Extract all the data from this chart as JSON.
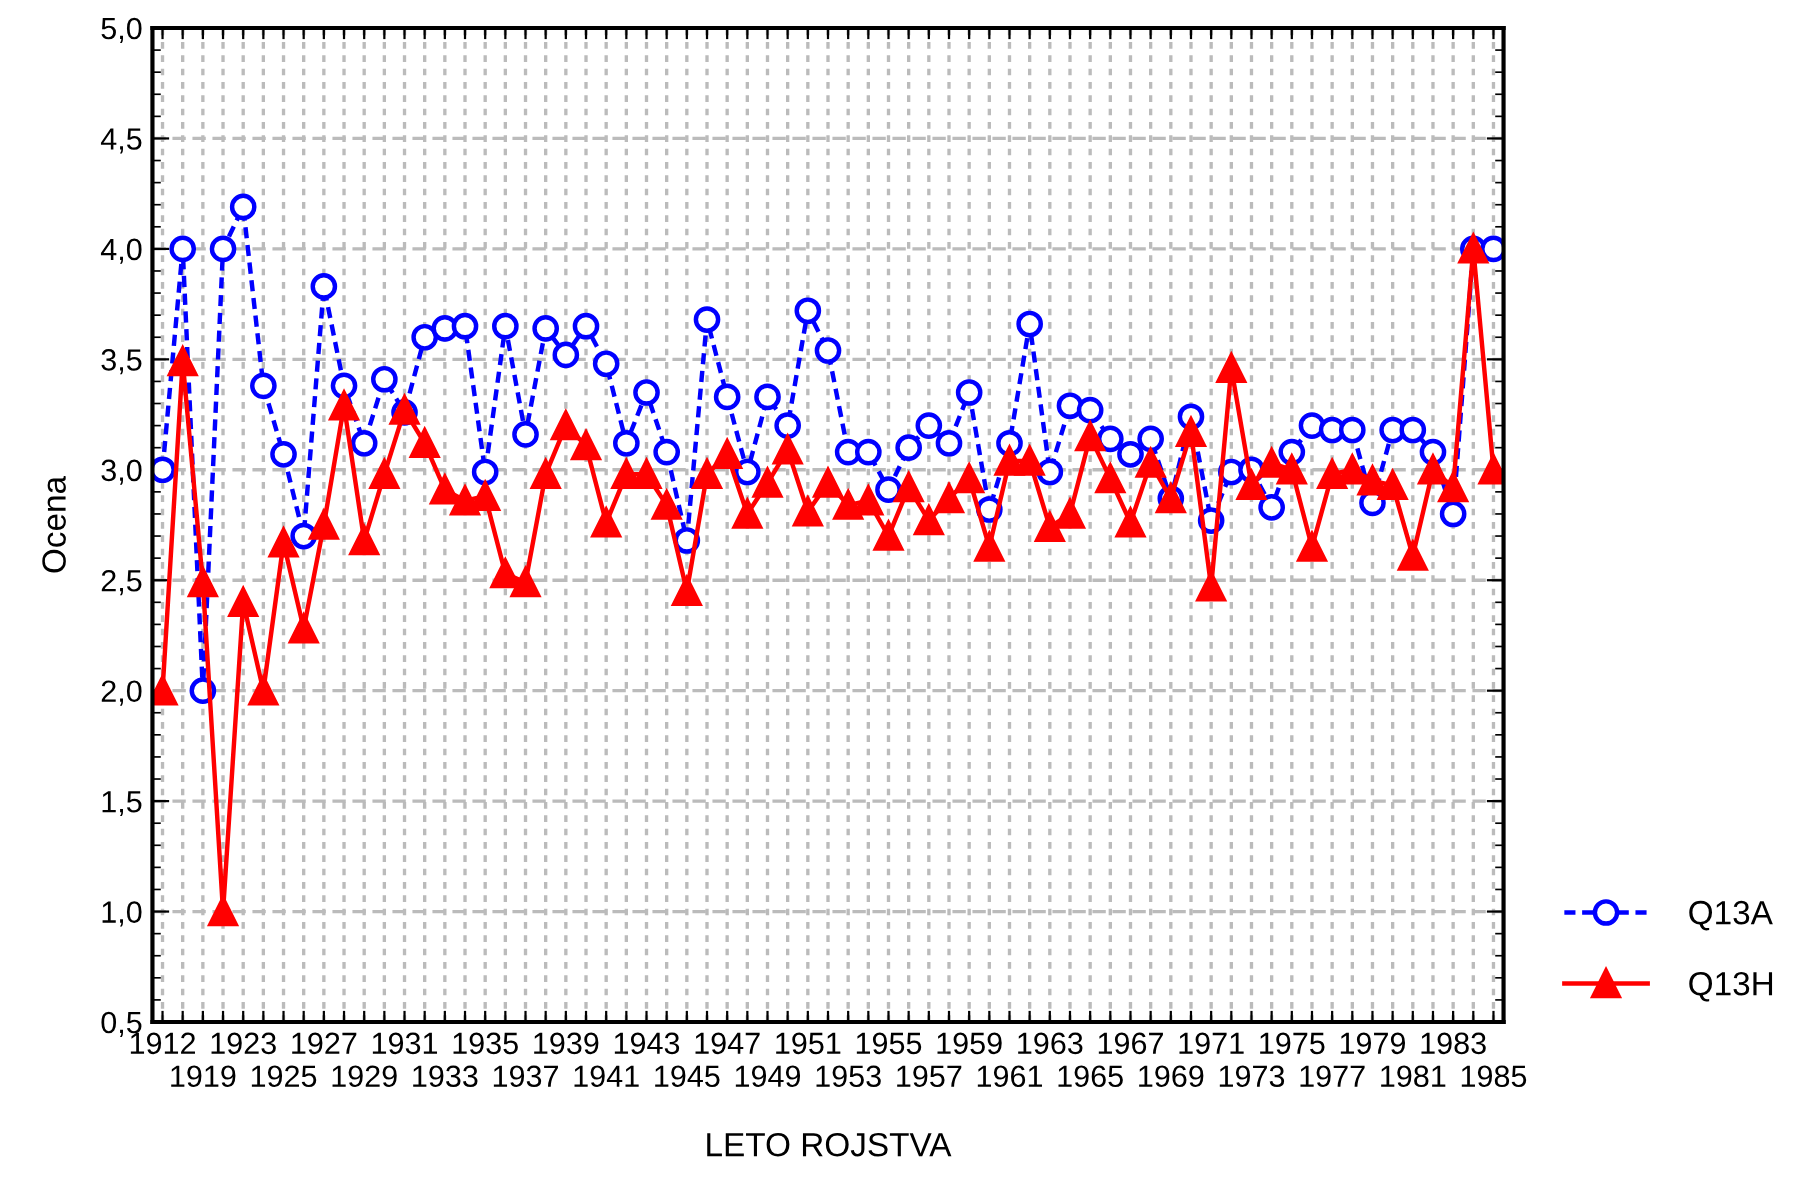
{
  "chart_data": {
    "type": "line",
    "xlabel": "LETO ROJSTVA",
    "ylabel": "Ocena",
    "categories": [
      "1912",
      null,
      "1919",
      null,
      "1923",
      null,
      "1925",
      null,
      "1927",
      null,
      "1929",
      null,
      "1931",
      null,
      "1933",
      null,
      "1935",
      null,
      "1937",
      null,
      "1939",
      null,
      "1941",
      null,
      "1943",
      null,
      "1945",
      null,
      "1947",
      null,
      "1949",
      null,
      "1951",
      null,
      "1953",
      null,
      "1955",
      null,
      "1957",
      null,
      "1959",
      null,
      "1961",
      null,
      "1963",
      null,
      "1965",
      null,
      "1967",
      null,
      "1969",
      null,
      "1971",
      null,
      "1973",
      null,
      "1975",
      null,
      "1977",
      null,
      "1979",
      null,
      "1981",
      null,
      "1983",
      null,
      "1985"
    ],
    "series": [
      {
        "name": "Q13A",
        "color": "#0000ff",
        "marker": "circle",
        "line_style": "dashed",
        "values": [
          3.0,
          4.0,
          2.0,
          4.0,
          4.19,
          3.38,
          3.07,
          2.7,
          3.83,
          3.38,
          3.12,
          3.41,
          3.26,
          3.6,
          3.64,
          3.65,
          2.99,
          3.65,
          3.16,
          3.64,
          3.52,
          3.65,
          3.48,
          3.12,
          3.35,
          3.08,
          2.68,
          3.68,
          3.33,
          2.99,
          3.33,
          3.2,
          3.72,
          3.54,
          3.08,
          3.08,
          2.91,
          3.1,
          3.2,
          3.12,
          3.35,
          2.82,
          3.12,
          3.66,
          2.99,
          3.29,
          3.27,
          3.14,
          3.07,
          3.14,
          2.87,
          3.24,
          2.77,
          2.99,
          3.0,
          2.83,
          3.08,
          3.2,
          3.18,
          3.18,
          2.85,
          3.18,
          3.18,
          3.08,
          2.8,
          4.0,
          4.0
        ]
      },
      {
        "name": "Q13H",
        "color": "#ff0000",
        "marker": "triangle",
        "line_style": "solid",
        "values": [
          2.0,
          3.49,
          2.49,
          1.0,
          2.4,
          2.0,
          2.67,
          2.28,
          2.75,
          3.29,
          2.68,
          2.98,
          3.27,
          3.12,
          2.91,
          2.86,
          2.88,
          2.53,
          2.49,
          2.98,
          3.2,
          3.11,
          2.76,
          2.98,
          2.98,
          2.84,
          2.45,
          2.98,
          3.07,
          2.8,
          2.94,
          3.09,
          2.81,
          2.94,
          2.84,
          2.86,
          2.7,
          2.92,
          2.77,
          2.87,
          2.96,
          2.65,
          3.04,
          3.04,
          2.74,
          2.8,
          3.15,
          2.96,
          2.76,
          3.03,
          2.87,
          3.17,
          2.47,
          3.46,
          2.93,
          3.03,
          3.0,
          2.65,
          2.98,
          3.0,
          2.95,
          2.93,
          2.61,
          3.0,
          2.92,
          4.0,
          3.0
        ]
      }
    ],
    "ylim": [
      0.5,
      5.0
    ],
    "yticks": [
      {
        "value": 0.5,
        "label": "0,5"
      },
      {
        "value": 1.0,
        "label": "1,0"
      },
      {
        "value": 1.5,
        "label": "1,5"
      },
      {
        "value": 2.0,
        "label": "2,0"
      },
      {
        "value": 2.5,
        "label": "2,5"
      },
      {
        "value": 3.0,
        "label": "3,0"
      },
      {
        "value": 3.5,
        "label": "3,5"
      },
      {
        "value": 4.0,
        "label": "4,0"
      },
      {
        "value": 4.5,
        "label": "4,5"
      },
      {
        "value": 5.0,
        "label": "5,0"
      }
    ],
    "grid": true,
    "legend": "bottom right"
  }
}
